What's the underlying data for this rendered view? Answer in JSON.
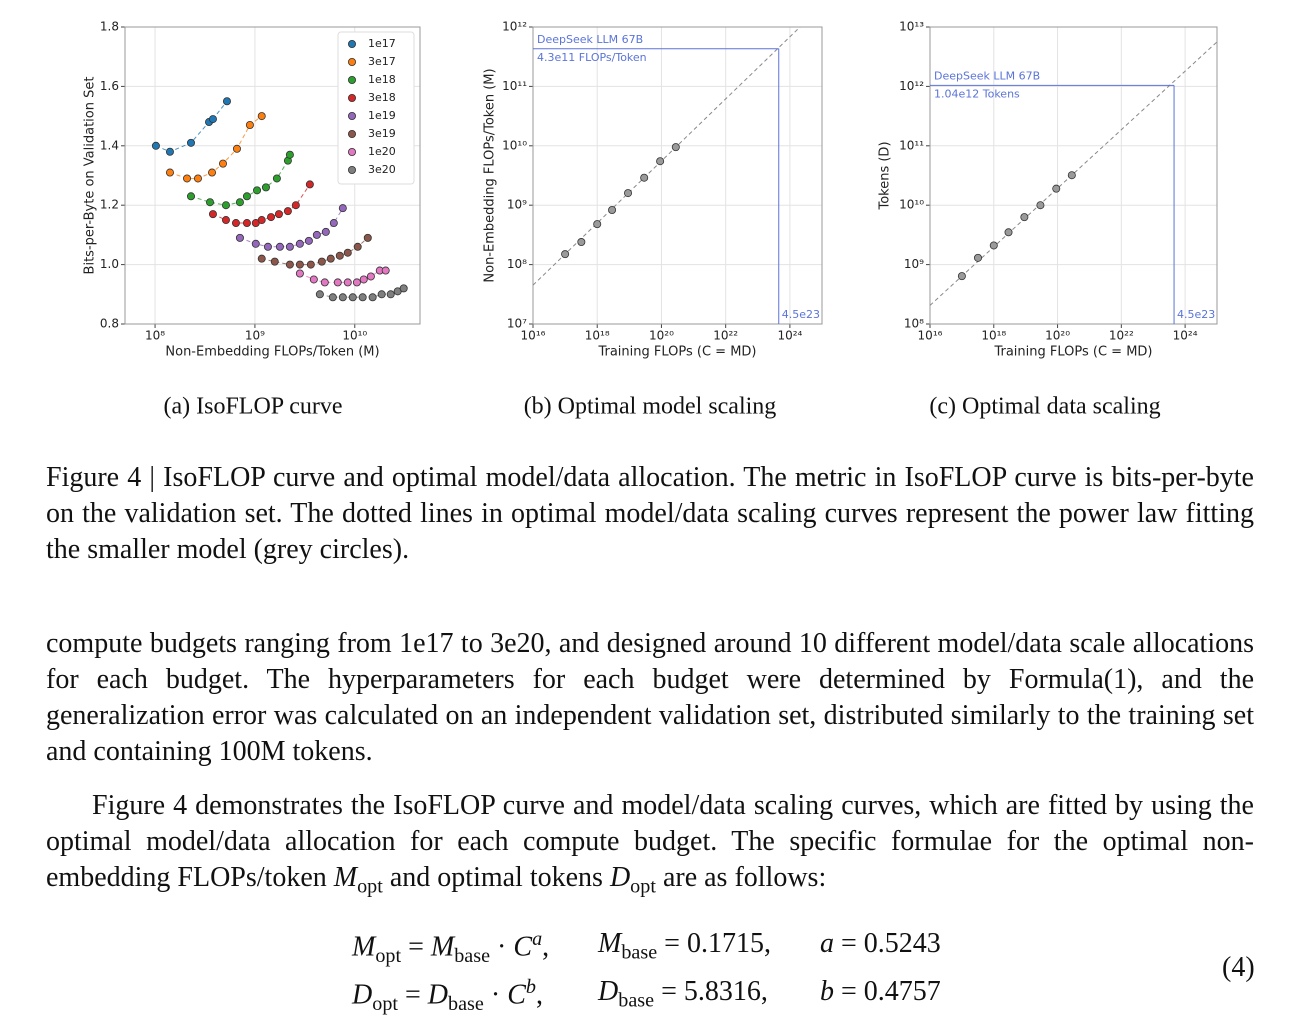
{
  "chart_data": [
    {
      "type": "scatter",
      "caption": "(a) IsoFLOP curve",
      "log_x": true,
      "xlabel": "Non-Embedding FLOPs/Token (M)",
      "ylabel": "Bits-per-Byte on Validation Set",
      "xlim": [
        50000000.0,
        45000000000.0
      ],
      "ylim": [
        0.8,
        1.8
      ],
      "xticks": [
        {
          "value": 100000000.0,
          "label": "10⁸"
        },
        {
          "value": 1000000000.0,
          "label": "10⁹"
        },
        {
          "value": 10000000000.0,
          "label": "10¹⁰"
        }
      ],
      "yticks": [
        0.8,
        {
          "value": 1,
          "label": "1.0"
        },
        1.2,
        1.4,
        1.6,
        1.8
      ],
      "grid": true,
      "legend": "upper right",
      "fit_line": true,
      "series": [
        {
          "name": "1e17",
          "color": "#1f77b4",
          "x": [
            102000000.0,
            141000000.0,
            229000000.0,
            347000000.0,
            380000000.0,
            525000000.0
          ],
          "values": [
            1.4,
            1.38,
            1.41,
            1.48,
            1.49,
            1.55
          ]
        },
        {
          "name": "3e17",
          "color": "#ff7f0e",
          "x": [
            141000000.0,
            209000000.0,
            269000000.0,
            372000000.0,
            479000000.0,
            661000000.0,
            891000000.0,
            1170000000.0
          ],
          "values": [
            1.31,
            1.29,
            1.29,
            1.31,
            1.34,
            1.39,
            1.47,
            1.5
          ]
        },
        {
          "name": "1e18",
          "color": "#2ca02c",
          "x": [
            229000000.0,
            355000000.0,
            513000000.0,
            708000000.0,
            832000000.0,
            1050000000.0,
            1290000000.0,
            1660000000.0,
            2140000000.0,
            2240000000.0
          ],
          "values": [
            1.23,
            1.21,
            1.2,
            1.21,
            1.23,
            1.25,
            1.26,
            1.29,
            1.35,
            1.37
          ]
        },
        {
          "name": "3e18",
          "color": "#d62728",
          "x": [
            380000000.0,
            513000000.0,
            646000000.0,
            832000000.0,
            1020000000.0,
            1170000000.0,
            1450000000.0,
            1740000000.0,
            2140000000.0,
            2570000000.0,
            3550000000.0
          ],
          "values": [
            1.17,
            1.15,
            1.14,
            1.14,
            1.14,
            1.15,
            1.16,
            1.17,
            1.18,
            1.2,
            1.27
          ]
        },
        {
          "name": "1e19",
          "color": "#9467bd",
          "x": [
            708000000.0,
            1020000000.0,
            1350000000.0,
            1780000000.0,
            2240000000.0,
            2820000000.0,
            3470000000.0,
            4170000000.0,
            5130000000.0,
            6170000000.0,
            7590000000.0
          ],
          "values": [
            1.09,
            1.07,
            1.06,
            1.06,
            1.06,
            1.07,
            1.08,
            1.1,
            1.11,
            1.14,
            1.19
          ]
        },
        {
          "name": "3e19",
          "color": "#8c564b",
          "x": [
            1170000000.0,
            1580000000.0,
            2240000000.0,
            2820000000.0,
            3630000000.0,
            4680000000.0,
            5750000000.0,
            7080000000.0,
            8510000000.0,
            10700000000.0,
            13500000000.0
          ],
          "values": [
            1.02,
            1.01,
            1.0,
            1.0,
            1.0,
            1.01,
            1.02,
            1.03,
            1.04,
            1.06,
            1.09
          ]
        },
        {
          "name": "1e20",
          "color": "#e377c2",
          "x": [
            2820000000.0,
            3890000000.0,
            5010000000.0,
            6760000000.0,
            8510000000.0,
            10500000000.0,
            12300000000.0,
            14500000000.0,
            17800000000.0,
            20400000000.0
          ],
          "values": [
            0.97,
            0.95,
            0.94,
            0.94,
            0.94,
            0.94,
            0.95,
            0.96,
            0.98,
            0.98
          ]
        },
        {
          "name": "3e20",
          "color": "#7f7f7f",
          "x": [
            4470000000.0,
            6030000000.0,
            7590000000.0,
            9550000000.0,
            12000000000.0,
            15100000000.0,
            18600000000.0,
            22900000000.0,
            26900000000.0,
            30900000000.0
          ],
          "values": [
            0.9,
            0.89,
            0.89,
            0.89,
            0.89,
            0.89,
            0.9,
            0.9,
            0.91,
            0.92
          ]
        }
      ]
    },
    {
      "type": "scatter",
      "caption": "(b) Optimal model scaling",
      "log_x": true,
      "log_y": true,
      "xlabel": "Training FLOPs (C = MD)",
      "ylabel": "Non-Embedding FLOPs/Token (M)",
      "xlim": [
        1e+16,
        1e+25
      ],
      "ylim": [
        10000000.0,
        1000000000000.0
      ],
      "xticks": [
        {
          "value": 1e+16,
          "label": "10¹⁶"
        },
        {
          "value": 1e+18,
          "label": "10¹⁸"
        },
        {
          "value": 1e+20,
          "label": "10²⁰"
        },
        {
          "value": 1e+22,
          "label": "10²²"
        },
        {
          "value": 1e+24,
          "label": "10²⁴"
        }
      ],
      "yticks": [
        {
          "value": 10000000.0,
          "label": "10⁷"
        },
        {
          "value": 100000000.0,
          "label": "10⁸"
        },
        {
          "value": 1000000000.0,
          "label": "10⁹"
        },
        {
          "value": 10000000000.0,
          "label": "10¹⁰"
        },
        {
          "value": 100000000000.0,
          "label": "10¹¹"
        },
        {
          "value": 1000000000000.0,
          "label": "10¹²"
        }
      ],
      "grid": true,
      "fit_line": true,
      "highlight_color": "#5b74d8",
      "series": [
        {
          "color": "#9a9a9a",
          "x": [
            1e+17,
            3.2e+17,
            1e+18,
            2.9e+18,
            9.1e+18,
            2.9e+19,
            9.1e+19,
            2.8e+20
          ],
          "values": [
            150000000.0,
            240000000.0,
            480000000.0,
            830000000.0,
            1600000000.0,
            2900000000.0,
            5500000000.0,
            9500000000.0
          ]
        }
      ],
      "highlight": {
        "x": 4.5e+23,
        "y": 430000000000.0,
        "label": "DeepSeek LLM 67B",
        "value_label": "4.3e11 FLOPs/Token",
        "x_label": "4.5e23"
      }
    },
    {
      "type": "scatter",
      "caption": "(c) Optimal data scaling",
      "log_x": true,
      "log_y": true,
      "xlabel": "Training FLOPs (C = MD)",
      "ylabel": "Tokens (D)",
      "xlim": [
        1e+16,
        1e+25
      ],
      "ylim": [
        100000000.0,
        10000000000000.0
      ],
      "xticks": [
        {
          "value": 1e+16,
          "label": "10¹⁶"
        },
        {
          "value": 1e+18,
          "label": "10¹⁸"
        },
        {
          "value": 1e+20,
          "label": "10²⁰"
        },
        {
          "value": 1e+22,
          "label": "10²²"
        },
        {
          "value": 1e+24,
          "label": "10²⁴"
        }
      ],
      "yticks": [
        {
          "value": 100000000.0,
          "label": "10⁸"
        },
        {
          "value": 1000000000.0,
          "label": "10⁹"
        },
        {
          "value": 10000000000.0,
          "label": "10¹⁰"
        },
        {
          "value": 100000000000.0,
          "label": "10¹¹"
        },
        {
          "value": 1000000000000.0,
          "label": "10¹²"
        },
        {
          "value": 10000000000000.0,
          "label": "10¹³"
        }
      ],
      "grid": true,
      "fit_line": true,
      "highlight_color": "#5b74d8",
      "series": [
        {
          "color": "#9a9a9a",
          "x": [
            1e+17,
            3.2e+17,
            1e+18,
            2.9e+18,
            9.1e+18,
            2.9e+19,
            9.1e+19,
            2.8e+20
          ],
          "values": [
            640000000.0,
            1300000000.0,
            2100000000.0,
            3500000000.0,
            6300000000.0,
            10000000000.0,
            19000000000.0,
            32000000000.0
          ]
        }
      ],
      "highlight": {
        "x": 4.5e+23,
        "y": 1040000000000.0,
        "label": "DeepSeek LLM 67B",
        "value_label": "1.04e12 Tokens",
        "x_label": "4.5e23"
      }
    }
  ],
  "caption": "Figure 4 | IsoFLOP curve and optimal model/data allocation. The metric in IsoFLOP curve is bits-per-byte on the validation set. The dotted lines in optimal model/data scaling curves represent the power law fitting the smaller model (grey circles).",
  "paragraphs": [
    "compute budgets ranging from 1e17 to 3e20, and designed around 10 different model/data scale allocations for each budget. The hyperparameters for each budget were determined by Formula(1), and the generalization error was calculated on an independent validation set, distributed similarly to the training set and containing 100M tokens.",
    [
      "Figure 4 demonstrates the IsoFLOP curve and model/data scaling curves, which are fitted by using the optimal model/data allocation for each compute budget. The specific formulae for the optimal non-embedding FLOPs/token ",
      "M",
      {
        "sub": "opt"
      },
      " and optimal tokens ",
      "D",
      {
        "sub": "opt"
      },
      " are as follows:"
    ]
  ],
  "equation": {
    "rows": [
      [
        [
          "M",
          {
            "sub": "opt"
          },
          " = ",
          "M",
          {
            "sub": "base"
          },
          " · ",
          "C",
          {
            "sup": "a"
          },
          ","
        ],
        [
          "M",
          {
            "sub": "base"
          },
          " = 0.1715,"
        ],
        [
          "a",
          " = 0.5243"
        ]
      ],
      [
        [
          "D",
          {
            "sub": "opt"
          },
          " = ",
          "D",
          {
            "sub": "base"
          },
          " · ",
          "C",
          {
            "sup": "b"
          },
          ","
        ],
        [
          "D",
          {
            "sub": "base"
          },
          " = 5.8316,"
        ],
        [
          "b",
          " = 0.4757"
        ]
      ]
    ],
    "number": "(4)"
  }
}
